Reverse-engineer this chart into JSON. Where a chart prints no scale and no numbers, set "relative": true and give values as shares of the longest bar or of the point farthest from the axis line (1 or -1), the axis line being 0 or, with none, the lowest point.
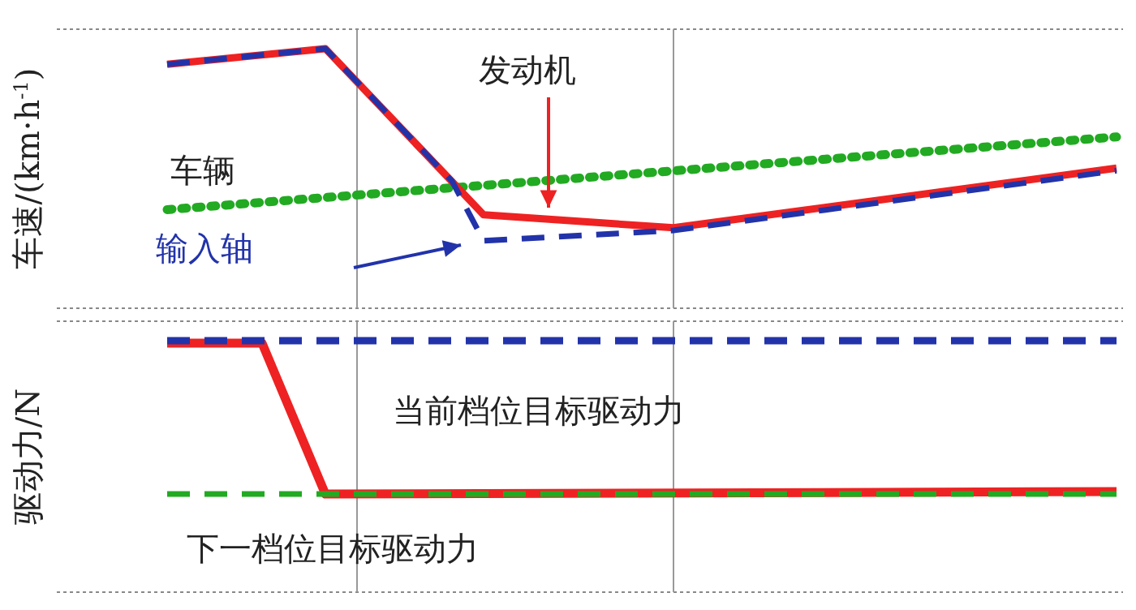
{
  "chart_data": [
    {
      "type": "line",
      "relative": true,
      "ylabel": "车速/(km·h$^{-1}$)",
      "categories": [
        null,
        null,
        null,
        null,
        null,
        null,
        null,
        null,
        null,
        null,
        null,
        null,
        null,
        null,
        null,
        null,
        null,
        null,
        null,
        null,
        null,
        null,
        null,
        null,
        null,
        null,
        null,
        null,
        null,
        null,
        null
      ],
      "series": [
        {
          "name": "车辆",
          "color": "#22aa22",
          "line_style": "dotted",
          "values": [
            0.38,
            null,
            null,
            null,
            null,
            null,
            null,
            null,
            null,
            null,
            null,
            null,
            null,
            null,
            null,
            null,
            null,
            null,
            null,
            null,
            null,
            null,
            null,
            null,
            null,
            null,
            null,
            null,
            null,
            null,
            0.66
          ]
        },
        {
          "name": "发动机",
          "color": "#ee2222",
          "line_style": "solid",
          "values": [
            0.94,
            null,
            null,
            null,
            null,
            1,
            null,
            null,
            null,
            null,
            0.36,
            null,
            null,
            null,
            null,
            null,
            0.31,
            null,
            null,
            null,
            null,
            null,
            null,
            null,
            null,
            null,
            null,
            null,
            null,
            null,
            0.54
          ]
        },
        {
          "name": "输入轴",
          "color": "#2233aa",
          "line_style": "dashed",
          "values": [
            0.94,
            null,
            null,
            null,
            null,
            1,
            null,
            null,
            null,
            0.49,
            0.26,
            null,
            null,
            null,
            null,
            null,
            0.3,
            null,
            null,
            null,
            null,
            null,
            null,
            null,
            null,
            null,
            null,
            null,
            null,
            null,
            0.53
          ]
        }
      ]
    },
    {
      "type": "line",
      "relative": true,
      "ylabel": "驱动力/N",
      "categories": [
        null,
        null,
        null,
        null,
        null,
        null,
        null,
        null,
        null,
        null,
        null,
        null,
        null,
        null,
        null,
        null,
        null,
        null,
        null,
        null,
        null,
        null,
        null,
        null,
        null,
        null,
        null,
        null,
        null,
        null,
        null
      ],
      "series": [
        {
          "color": "#ee2222",
          "line_style": "solid",
          "values": [
            0.99,
            null,
            null,
            0.99,
            null,
            0.39,
            null,
            null,
            null,
            null,
            null,
            null,
            null,
            null,
            null,
            null,
            null,
            null,
            null,
            null,
            null,
            null,
            null,
            null,
            null,
            null,
            null,
            null,
            null,
            null,
            0.4
          ]
        },
        {
          "name": "当前档位目标驱动力",
          "color": "#2233aa",
          "line_style": "dashed",
          "values": [
            1,
            null,
            null,
            null,
            null,
            null,
            null,
            null,
            null,
            null,
            null,
            null,
            null,
            null,
            null,
            null,
            null,
            null,
            null,
            null,
            null,
            null,
            null,
            null,
            null,
            null,
            null,
            null,
            null,
            null,
            1
          ]
        },
        {
          "name": "下一档位目标驱动力",
          "color": "#22aa22",
          "line_style": "dashed",
          "values": [
            0.39,
            null,
            null,
            null,
            null,
            null,
            null,
            null,
            null,
            null,
            null,
            null,
            null,
            null,
            null,
            null,
            null,
            null,
            null,
            null,
            null,
            null,
            null,
            null,
            null,
            null,
            null,
            null,
            null,
            null,
            0.39
          ]
        }
      ]
    }
  ]
}
